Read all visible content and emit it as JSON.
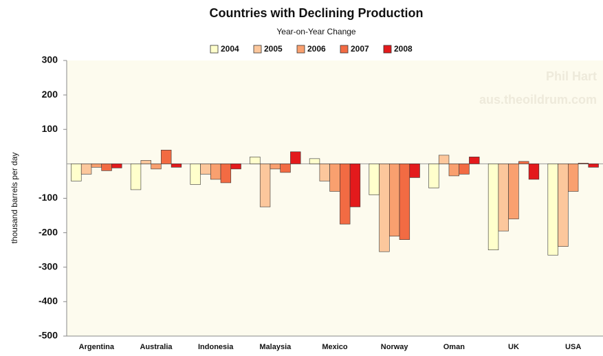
{
  "chart_data": {
    "type": "bar",
    "title": "Countries with Declining Production",
    "subtitle": "Year-on-Year Change",
    "y_label": "thousand barrels per day",
    "watermark": [
      "Phil Hart",
      "aus.theoildrum.com"
    ],
    "categories": [
      "Argentina",
      "Australia",
      "Indonesia",
      "Malaysia",
      "Mexico",
      "Norway",
      "Oman",
      "UK",
      "USA"
    ],
    "series": [
      {
        "name": "2004",
        "color": "#ffffcc",
        "values": [
          -50,
          -75,
          -60,
          20,
          15,
          -90,
          -70,
          -250,
          -265
        ]
      },
      {
        "name": "2005",
        "color": "#fcc79c",
        "values": [
          -30,
          10,
          -30,
          -125,
          -50,
          -255,
          25,
          -195,
          -240
        ]
      },
      {
        "name": "2006",
        "color": "#f9a06f",
        "values": [
          -10,
          -15,
          -45,
          -15,
          -80,
          -210,
          -35,
          -160,
          -80
        ]
      },
      {
        "name": "2007",
        "color": "#f26b43",
        "values": [
          -20,
          40,
          -55,
          -25,
          -175,
          -220,
          -30,
          7,
          2
        ]
      },
      {
        "name": "2008",
        "color": "#e31a1c",
        "values": [
          -12,
          -10,
          -15,
          35,
          -125,
          -40,
          20,
          -45,
          -10
        ]
      }
    ],
    "ylim": [
      -500,
      300
    ],
    "yticks": [
      300,
      200,
      100,
      -100,
      -200,
      -300,
      -400,
      -500
    ],
    "legend": "top"
  }
}
